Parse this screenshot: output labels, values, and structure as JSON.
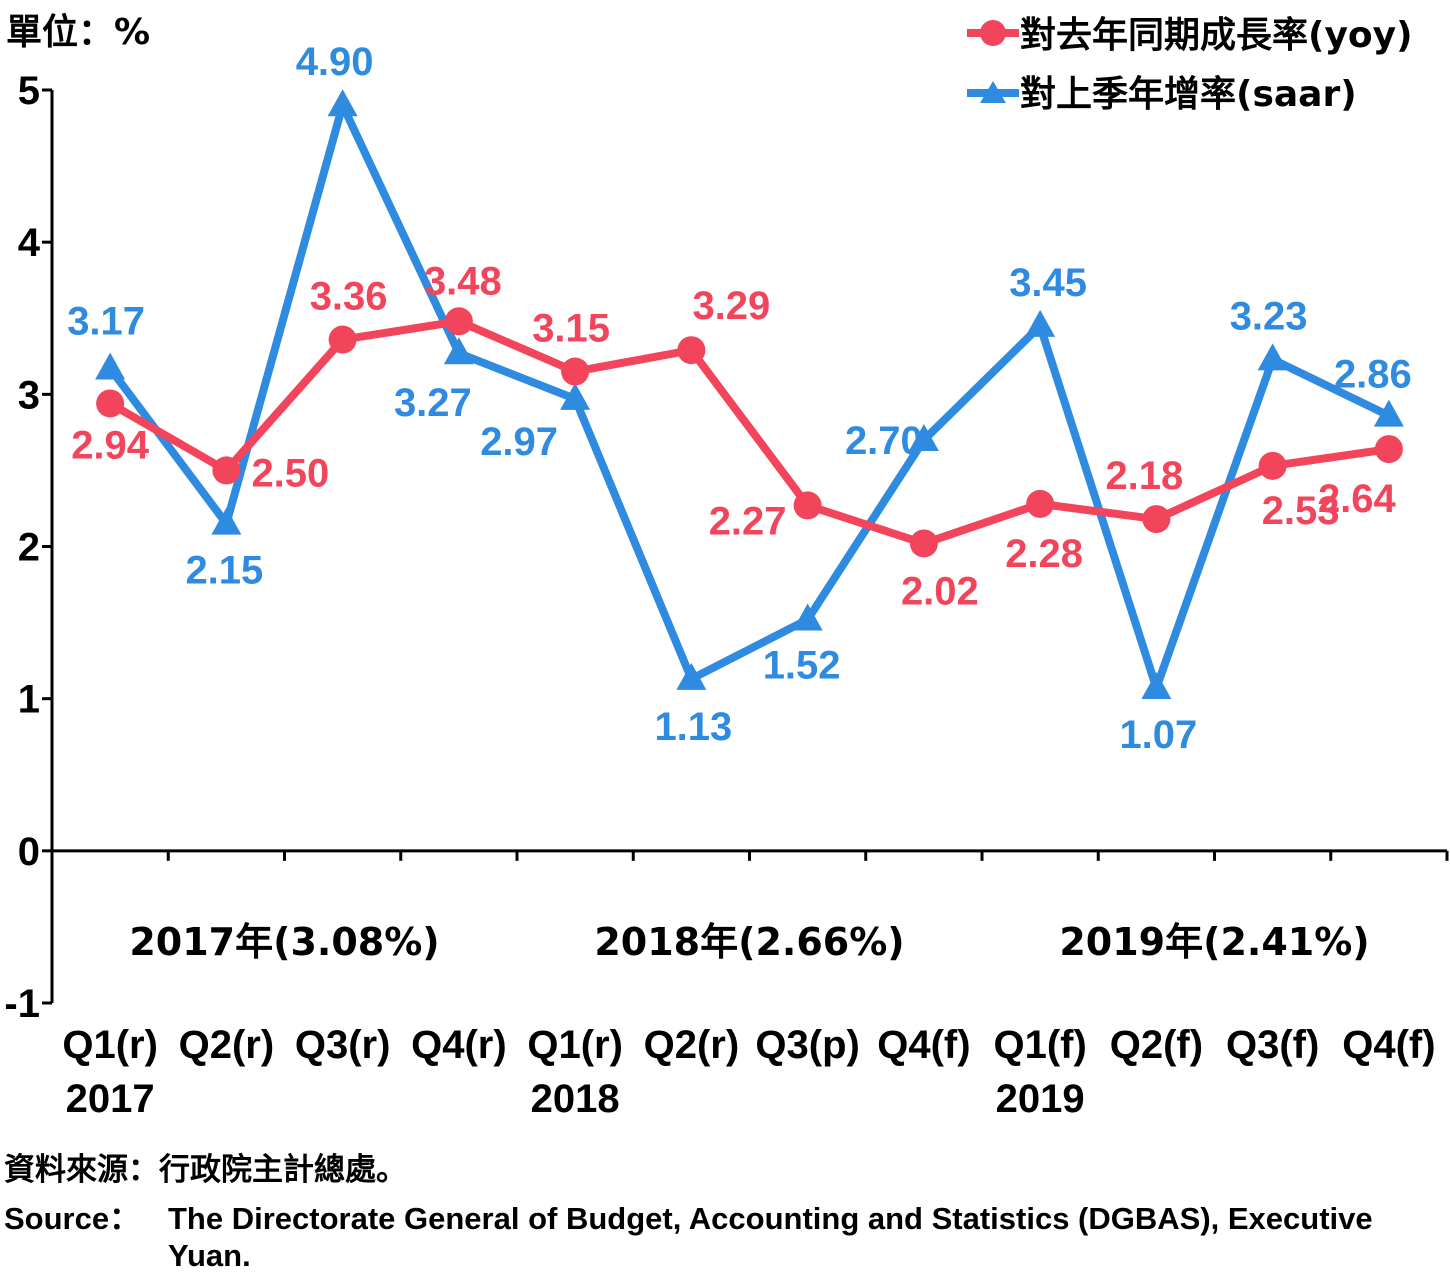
{
  "unit_label": "單位：%",
  "legend": {
    "yoy": "對去年同期成長率(yoy)",
    "saar": "對上季年增率(saar)"
  },
  "colors": {
    "yoy": "#f2445a",
    "saar": "#2f8be0",
    "axis": "#000000"
  },
  "chart_data": {
    "type": "line",
    "categories": [
      "Q1(r)",
      "Q2(r)",
      "Q3(r)",
      "Q4(r)",
      "Q1(r)",
      "Q2(r)",
      "Q3(p)",
      "Q4(f)",
      "Q1(f)",
      "Q2(f)",
      "Q3(f)",
      "Q4(f)"
    ],
    "year_labels": [
      "2017",
      "2018",
      "2019"
    ],
    "annual_labels": [
      "2017年(3.08%)",
      "2018年(2.66%)",
      "2019年(2.41%)"
    ],
    "series": [
      {
        "name": "對去年同期成長率(yoy)",
        "key": "yoy",
        "marker": "circle",
        "values": [
          2.94,
          2.5,
          3.36,
          3.48,
          3.15,
          3.29,
          2.27,
          2.02,
          2.28,
          2.18,
          2.53,
          2.64
        ],
        "labels": [
          "2.94",
          "2.50",
          "3.36",
          "3.48",
          "3.15",
          "3.29",
          "2.27",
          "2.02",
          "2.28",
          "2.18",
          "2.53",
          "2.64"
        ]
      },
      {
        "name": "對上季年增率(saar)",
        "key": "saar",
        "marker": "triangle",
        "values": [
          3.17,
          2.15,
          4.9,
          3.27,
          2.97,
          1.13,
          1.52,
          2.7,
          3.45,
          1.07,
          3.23,
          2.86
        ],
        "labels": [
          "3.17",
          "2.15",
          "4.90",
          "3.27",
          "2.97",
          "1.13",
          "1.52",
          "2.70",
          "3.45",
          "1.07",
          "3.23",
          "2.86"
        ]
      }
    ],
    "yticks": [
      "5",
      "4",
      "3",
      "2",
      "1",
      "0",
      "-1"
    ],
    "ylim": [
      -1,
      5
    ],
    "grid": false,
    "legend_position": "top-right"
  },
  "source": {
    "zh": "資料來源：行政院主計總處。",
    "en_lead": "Source：",
    "en": "The Directorate General of Budget, Accounting and Statistics (DGBAS), Executive Yuan."
  }
}
